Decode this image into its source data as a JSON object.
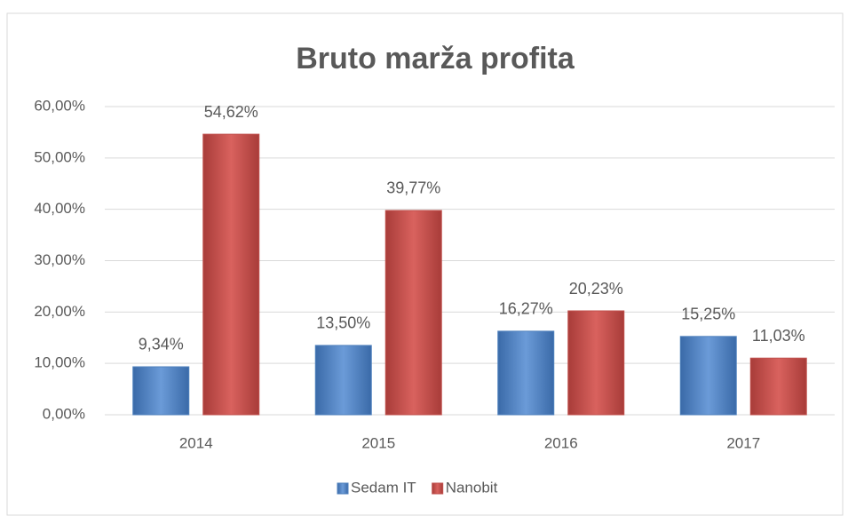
{
  "chart_data": {
    "type": "bar",
    "title": "Bruto marža profita",
    "categories": [
      "2014",
      "2015",
      "2016",
      "2017"
    ],
    "series": [
      {
        "name": "Sedam IT",
        "color": "#4f81bd",
        "values": [
          9.34,
          13.5,
          16.27,
          15.25
        ],
        "value_labels": [
          "9,34%",
          "13,50%",
          "16,27%",
          "15,25%"
        ]
      },
      {
        "name": "Nanobit",
        "color": "#c0504d",
        "values": [
          54.62,
          39.77,
          20.23,
          11.03
        ],
        "value_labels": [
          "54,62%",
          "39,77%",
          "20,23%",
          "11,03%"
        ]
      }
    ],
    "ylim": [
      0,
      60
    ],
    "yticks": [
      {
        "value": 0,
        "label": "0,00%"
      },
      {
        "value": 10,
        "label": "10,00%"
      },
      {
        "value": 20,
        "label": "20,00%"
      },
      {
        "value": 30,
        "label": "30,00%"
      },
      {
        "value": 40,
        "label": "40,00%"
      },
      {
        "value": 50,
        "label": "50,00%"
      },
      {
        "value": 60,
        "label": "60,00%"
      }
    ],
    "grid": true,
    "legend": "bottom"
  }
}
